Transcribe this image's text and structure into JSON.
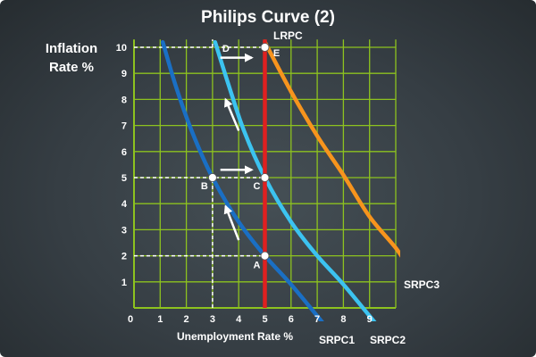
{
  "title": "Philips Curve (2)",
  "ylabel_lines": [
    "Inflation",
    "Rate %"
  ],
  "chart_data": {
    "type": "line",
    "title": "Philips Curve (2)",
    "xlabel": "Unemployment Rate %",
    "ylabel": "Inflation Rate %",
    "xlim": [
      0,
      10
    ],
    "ylim": [
      0,
      10
    ],
    "x_ticks": [
      "0",
      "1",
      "2",
      "3",
      "4",
      "5",
      "6",
      "7",
      "8",
      "9"
    ],
    "y_ticks": [
      "1",
      "2",
      "3",
      "4",
      "5",
      "6",
      "7",
      "8",
      "9",
      "10"
    ],
    "grid": true,
    "grid_color": "#8dc21f",
    "series": [
      {
        "name": "SRPC1",
        "color": "#1a6fc4",
        "points": [
          [
            1.1,
            10.2
          ],
          [
            1.6,
            8.5
          ],
          [
            2.2,
            6.8
          ],
          [
            3,
            5
          ],
          [
            4,
            3.3
          ],
          [
            5,
            2
          ],
          [
            6,
            0.9
          ],
          [
            7.4,
            -0.8
          ]
        ]
      },
      {
        "name": "SRPC2",
        "color": "#3cc3f0",
        "points": [
          [
            3.1,
            10.2
          ],
          [
            3.6,
            8.6
          ],
          [
            4.2,
            6.8
          ],
          [
            5,
            5
          ],
          [
            6,
            3.3
          ],
          [
            7,
            2
          ],
          [
            8,
            0.9
          ],
          [
            9.4,
            -0.8
          ]
        ]
      },
      {
        "name": "SRPC3",
        "color": "#f7941d",
        "points": [
          [
            5,
            10.2
          ],
          [
            6,
            8.3
          ],
          [
            7,
            6.6
          ],
          [
            8,
            5.1
          ],
          [
            9,
            3.5
          ],
          [
            10,
            2.3
          ],
          [
            10.6,
            1.4
          ]
        ]
      }
    ],
    "lrpc": {
      "name": "LRPC",
      "x": 5,
      "color": "#e02020"
    },
    "points": [
      {
        "label": "A",
        "x": 5,
        "y": 2
      },
      {
        "label": "B",
        "x": 3,
        "y": 5
      },
      {
        "label": "C",
        "x": 5,
        "y": 5
      },
      {
        "label": "D",
        "x": 3,
        "y": 10
      },
      {
        "label": "E",
        "x": 5,
        "y": 10
      }
    ],
    "dashed_guides": [
      {
        "from": [
          0,
          2
        ],
        "to": [
          5,
          2
        ]
      },
      {
        "from": [
          0,
          5
        ],
        "to": [
          5,
          5
        ]
      },
      {
        "from": [
          3,
          0
        ],
        "to": [
          3,
          5
        ]
      },
      {
        "from": [
          0,
          10
        ],
        "to": [
          5,
          10
        ]
      },
      {
        "from": [
          3,
          10
        ],
        "to": [
          3,
          10.3
        ]
      }
    ],
    "arrows": [
      {
        "from": [
          3.3,
          5.3
        ],
        "to": [
          4.5,
          5.3
        ]
      },
      {
        "from": [
          3.3,
          9.6
        ],
        "to": [
          4.5,
          9.6
        ]
      },
      {
        "from": [
          4,
          2.6
        ],
        "to": [
          3.5,
          3.9
        ]
      },
      {
        "from": [
          4,
          6.8
        ],
        "to": [
          3.5,
          8.0
        ]
      }
    ]
  }
}
